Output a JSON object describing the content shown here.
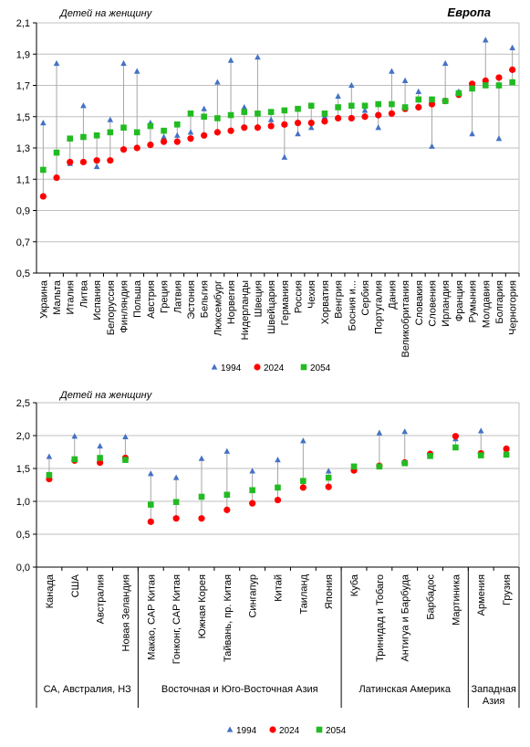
{
  "chart_data": [
    {
      "type": "scatter",
      "title": "Европа",
      "ylabel": "Детей на женщину",
      "ylim": [
        0.5,
        2.1
      ],
      "yticks": [
        "0,5",
        "0,7",
        "0,9",
        "1,1",
        "1,3",
        "1,5",
        "1,7",
        "1,9",
        "2,1"
      ],
      "categories": [
        "Украина",
        "Мальта",
        "Италия",
        "Литва",
        "Испания",
        "Белоруссия",
        "Финляндия",
        "Польша",
        "Австрия",
        "Греция",
        "Латвия",
        "Эстония",
        "Бельгия",
        "Люксембург",
        "Норвегия",
        "Нидерланды",
        "Швеция",
        "Швейцария",
        "Германия",
        "Россия",
        "Чехия",
        "Хорватия",
        "Венгрия",
        "Босния и...",
        "Сербия",
        "Португалия",
        "Дания",
        "Великобритания",
        "Словакия",
        "Словения",
        "Ирландия",
        "Франция",
        "Румыния",
        "Молдавия",
        "Болгария",
        "Черногория"
      ],
      "series": [
        {
          "name": "1994",
          "marker": "triangle",
          "color": "#4472C4",
          "values": [
            1.46,
            1.84,
            1.2,
            1.57,
            1.18,
            1.48,
            1.84,
            1.79,
            1.46,
            1.37,
            1.38,
            1.4,
            1.55,
            1.72,
            1.86,
            1.56,
            1.88,
            1.48,
            1.24,
            1.39,
            1.43,
            1.5,
            1.63,
            1.7,
            1.54,
            1.43,
            1.79,
            1.73,
            1.66,
            1.31,
            1.84,
            1.66,
            1.39,
            1.99,
            1.36,
            1.94
          ]
        },
        {
          "name": "2024",
          "marker": "circle",
          "color": "#FF0000",
          "values": [
            0.99,
            1.11,
            1.21,
            1.21,
            1.22,
            1.22,
            1.29,
            1.3,
            1.32,
            1.34,
            1.34,
            1.36,
            1.38,
            1.4,
            1.41,
            1.43,
            1.43,
            1.44,
            1.45,
            1.46,
            1.46,
            1.47,
            1.49,
            1.49,
            1.5,
            1.51,
            1.52,
            1.55,
            1.56,
            1.58,
            1.6,
            1.64,
            1.71,
            1.73,
            1.75,
            1.8
          ]
        },
        {
          "name": "2054",
          "marker": "square",
          "color": "#22BB22",
          "values": [
            1.16,
            1.27,
            1.36,
            1.37,
            1.38,
            1.4,
            1.43,
            1.4,
            1.44,
            1.41,
            1.45,
            1.52,
            1.5,
            1.49,
            1.51,
            1.53,
            1.52,
            1.53,
            1.54,
            1.55,
            1.57,
            1.52,
            1.56,
            1.57,
            1.57,
            1.58,
            1.58,
            1.56,
            1.61,
            1.61,
            1.6,
            1.65,
            1.68,
            1.7,
            1.7,
            1.72
          ]
        }
      ],
      "legend": "bottom"
    },
    {
      "type": "scatter",
      "title": "",
      "ylabel": "Детей на женщину",
      "ylim": [
        0.0,
        2.5
      ],
      "yticks": [
        "0,0",
        "0,5",
        "1,0",
        "1,5",
        "2,0",
        "2,5"
      ],
      "categories": [
        "Канада",
        "США",
        "Австралия",
        "Новая Зеландия",
        "Макао, САР Китая",
        "Гонконг, САР Китая",
        "Южная Корея",
        "Тайвань, пр. Китая",
        "Сингапур",
        "Китай",
        "Таиланд",
        "Япония",
        "Куба",
        "Тринидад и Тобаго",
        "Антигуа и Барбуда",
        "Барбадос",
        "Мартиника",
        "Армения",
        "Грузия"
      ],
      "groups": [
        {
          "label": "СА, Австралия, НЗ",
          "count": 4
        },
        {
          "label": "Восточная и Юго-Восточная Азия",
          "count": 8
        },
        {
          "label": "Латинская Америка",
          "count": 5
        },
        {
          "label": "Западная Азия",
          "count": 2
        }
      ],
      "series": [
        {
          "name": "1994",
          "marker": "triangle",
          "color": "#4472C4",
          "values": [
            1.68,
            1.99,
            1.84,
            1.98,
            1.42,
            1.36,
            1.65,
            1.76,
            1.46,
            1.63,
            1.92,
            1.46,
            1.52,
            2.04,
            2.06,
            1.73,
            1.95,
            2.07,
            1.8
          ]
        },
        {
          "name": "2024",
          "marker": "circle",
          "color": "#FF0000",
          "values": [
            1.34,
            1.62,
            1.59,
            1.66,
            0.69,
            0.74,
            0.74,
            0.87,
            0.97,
            1.02,
            1.21,
            1.22,
            1.47,
            1.54,
            1.59,
            1.72,
            1.99,
            1.73,
            1.8
          ]
        },
        {
          "name": "2054",
          "marker": "square",
          "color": "#22BB22",
          "values": [
            1.4,
            1.64,
            1.66,
            1.63,
            0.95,
            0.99,
            1.07,
            1.1,
            1.17,
            1.21,
            1.31,
            1.36,
            1.53,
            1.53,
            1.58,
            1.69,
            1.82,
            1.7,
            1.71
          ]
        }
      ],
      "legend": "bottom"
    }
  ]
}
